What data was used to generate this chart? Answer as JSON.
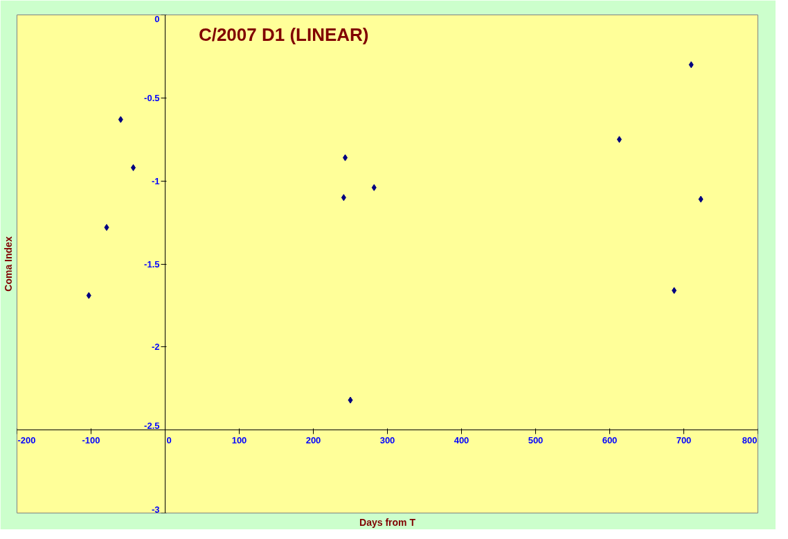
{
  "chart_data": {
    "type": "scatter",
    "title": "C/2007 D1 (LINEAR)",
    "xlabel": "Days from T",
    "ylabel": "Coma Index",
    "x": [
      -103,
      -79,
      -60,
      -43,
      243,
      241,
      282,
      250,
      613,
      710,
      723,
      687
    ],
    "series": [
      {
        "color": "#000080",
        "values": [
          -1.69,
          -1.28,
          -0.63,
          -0.92,
          -0.86,
          -1.1,
          -1.04,
          -2.32,
          -0.75,
          -0.3,
          -1.11,
          -1.66
        ]
      }
    ],
    "xlim": [
      -200,
      800
    ],
    "xticks": [
      -200,
      -100,
      0,
      100,
      200,
      300,
      400,
      500,
      600,
      700,
      800
    ],
    "ylim": [
      -3,
      0
    ],
    "yticks": [
      -3,
      -2.5,
      -2,
      -1.5,
      -1,
      -0.5,
      0
    ],
    "marker": "diamond",
    "grid": false
  }
}
